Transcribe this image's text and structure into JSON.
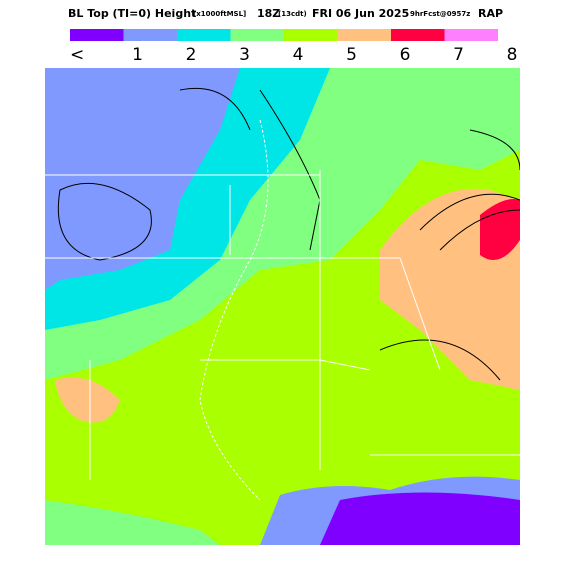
{
  "header": {
    "title": "BL Top (TI=0) Height",
    "units": "[x1000ftMSL]",
    "valid": "18Z",
    "local": "(13cdt)",
    "date": "FRI 06 Jun 2025",
    "forecast": "9hrFcst@0957z",
    "model": "RAP"
  },
  "legend": {
    "colors": [
      "#7f00ff",
      "#8099ff",
      "#00e6e6",
      "#80ff80",
      "#aaff00",
      "#ffc080",
      "#ff0040",
      "#ff80ff"
    ],
    "labels": [
      "<",
      "1",
      "2",
      "3",
      "4",
      "5",
      "6",
      "7",
      "8"
    ]
  }
}
